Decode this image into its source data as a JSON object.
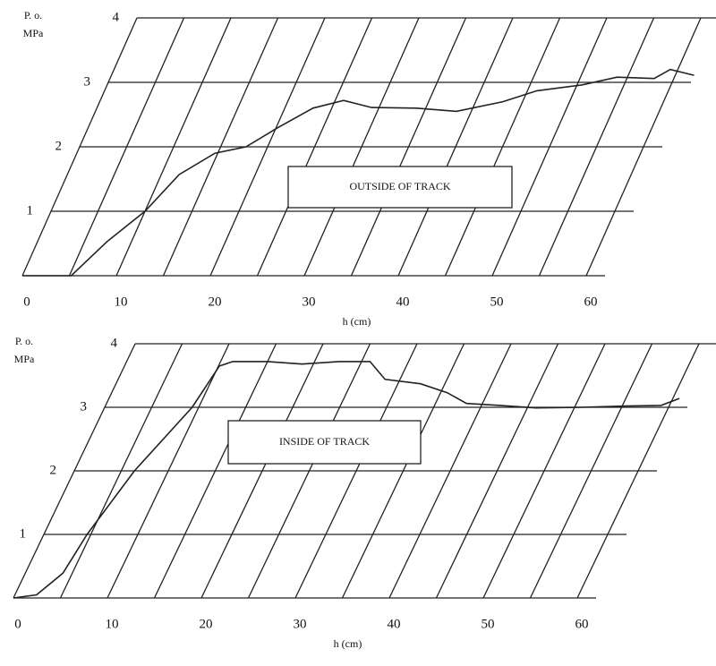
{
  "chart_data": [
    {
      "type": "line",
      "ylabel": [
        "P. o.",
        "MPa"
      ],
      "xlabel": "h (cm)",
      "annotation": "OUTSIDE OF TRACK",
      "xlim": [
        0,
        62
      ],
      "ylim": [
        0,
        4
      ],
      "xticks": [
        0,
        10,
        20,
        30,
        40,
        50,
        60
      ],
      "yticks": [
        1,
        2,
        3,
        4
      ],
      "grid": true,
      "color": "#222222",
      "x": [
        0,
        5.2,
        7.4,
        10,
        11.9,
        14.7,
        17.7,
        20.2,
        23,
        25.9,
        29.2,
        34,
        38.4,
        42.9,
        46,
        50.5,
        53.9,
        57.9,
        59.2,
        62
      ],
      "values": [
        0,
        0,
        0.53,
        1,
        1.57,
        1.9,
        2,
        2.3,
        2.6,
        2.72,
        2.61,
        2.6,
        2.55,
        2.7,
        2.87,
        2.96,
        3.08,
        3.06,
        3.2,
        3.11
      ]
    },
    {
      "type": "line",
      "ylabel": [
        "P. o.",
        "MPa"
      ],
      "xlabel": "h (cm)",
      "annotation": "INSIDE OF TRACK",
      "xlim": [
        0,
        62
      ],
      "ylim": [
        0,
        4
      ],
      "xticks": [
        0,
        10,
        20,
        30,
        40,
        50,
        60
      ],
      "yticks": [
        1,
        2,
        3,
        4
      ],
      "grid": true,
      "color": "#222222",
      "x": [
        0,
        2.3,
        4,
        4.6,
        6.4,
        9.3,
        10.1,
        11.3,
        15,
        18.8,
        22.6,
        25.9,
        28.4,
        32.4,
        35.7,
        38.3,
        42,
        45.9,
        50.7,
        55.4,
        59.1,
        60.7
      ],
      "values": [
        0,
        0.05,
        0.39,
        1,
        2,
        3,
        3.65,
        3.72,
        3.72,
        3.68,
        3.72,
        3.72,
        3.44,
        3.37,
        3.23,
        3.06,
        3.03,
        2.99,
        3,
        3.02,
        3.03,
        3.14
      ]
    }
  ]
}
